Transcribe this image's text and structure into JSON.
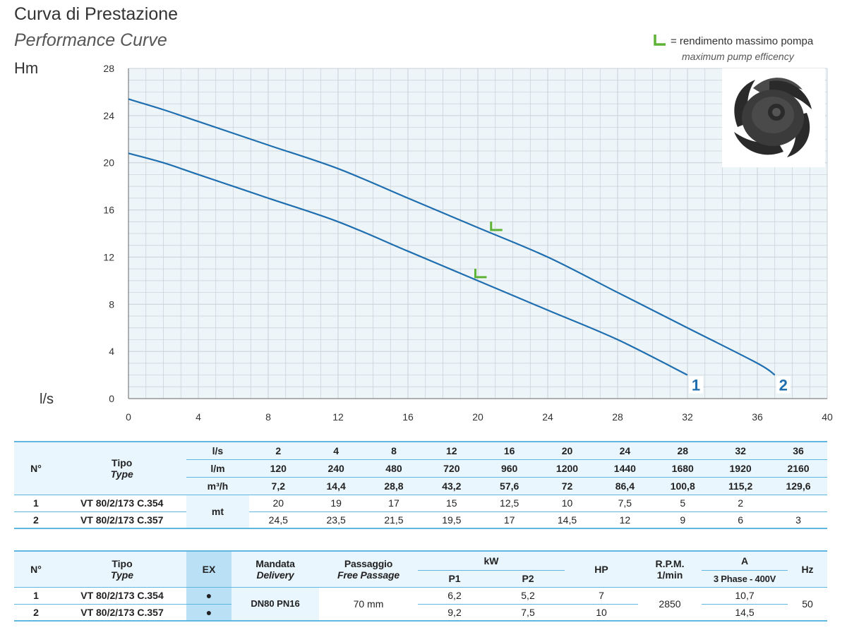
{
  "header": {
    "title": "Curva di Prestazione",
    "subtitle": "Performance Curve",
    "legend_text_it": "= rendimento massimo pompa",
    "legend_text_en": "maximum pump efficency"
  },
  "colors": {
    "curve": "#1f6fb0",
    "marker": "#5db336",
    "grid": "#c8d0d6",
    "plot_bg": "#eef5f9",
    "table_head": "#e9f6fd",
    "ex_col": "#b9e0f5"
  },
  "icons": {
    "legend_marker": "efficiency-marker-icon",
    "impeller": "impeller-image"
  },
  "chart_data": {
    "type": "line",
    "title": "Curva di Prestazione",
    "xlabel": "l/s",
    "ylabel": "Hm",
    "xlim": [
      0,
      40
    ],
    "ylim": [
      0,
      28
    ],
    "xticks": [
      0,
      4,
      8,
      12,
      16,
      20,
      24,
      28,
      32,
      36,
      40
    ],
    "yticks": [
      0,
      4,
      8,
      12,
      16,
      20,
      24,
      28
    ],
    "grid": true,
    "series": [
      {
        "name": "1",
        "x": [
          0,
          2,
          4,
          8,
          12,
          16,
          20,
          24,
          28,
          32
        ],
        "y": [
          20.8,
          20,
          19,
          17,
          15,
          12.5,
          10,
          7.5,
          5,
          2
        ],
        "bep": [
          20.1,
          10.3
        ]
      },
      {
        "name": "2",
        "x": [
          0,
          2,
          4,
          8,
          12,
          16,
          20,
          24,
          28,
          32,
          36,
          37
        ],
        "y": [
          25.4,
          24.5,
          23.5,
          21.5,
          19.5,
          17,
          14.5,
          12,
          9,
          6,
          3,
          2
        ],
        "bep": [
          21,
          14.3
        ]
      }
    ]
  },
  "table1": {
    "h_n": "N°",
    "h_tipo": "Tipo",
    "h_type": "Type",
    "unit_ls": "l/s",
    "unit_lm": "l/m",
    "unit_m3h": "m³/h",
    "unit_mt": "mt",
    "ls": [
      "2",
      "4",
      "8",
      "12",
      "16",
      "20",
      "24",
      "28",
      "32",
      "36"
    ],
    "lm": [
      "120",
      "240",
      "480",
      "720",
      "960",
      "1200",
      "1440",
      "1680",
      "1920",
      "2160"
    ],
    "m3h": [
      "7,2",
      "14,4",
      "28,8",
      "43,2",
      "57,6",
      "72",
      "86,4",
      "100,8",
      "115,2",
      "129,6"
    ],
    "rows": [
      {
        "n": "1",
        "model": "VT 80/2/173 C.354",
        "vals": [
          "20",
          "19",
          "17",
          "15",
          "12,5",
          "10",
          "7,5",
          "5",
          "2",
          ""
        ]
      },
      {
        "n": "2",
        "model": "VT 80/2/173 C.357",
        "vals": [
          "24,5",
          "23,5",
          "21,5",
          "19,5",
          "17",
          "14,5",
          "12",
          "9",
          "6",
          "3"
        ]
      }
    ]
  },
  "table2": {
    "h_n": "N°",
    "h_tipo": "Tipo",
    "h_type": "Type",
    "h_ex": "EX",
    "h_mandata": "Mandata",
    "h_delivery": "Delivery",
    "h_passaggio": "Passaggio",
    "h_free": "Free Passage",
    "h_kw": "kW",
    "h_p1": "P1",
    "h_p2": "P2",
    "h_hp": "HP",
    "h_rpm": "R.P.M.",
    "h_rpm2": "1/min",
    "h_a": "A",
    "h_phase": "3 Phase - 400V",
    "h_hz": "Hz",
    "delivery": "DN80 PN16",
    "passage": "70 mm",
    "rpm": "2850",
    "hz": "50",
    "rows": [
      {
        "n": "1",
        "model": "VT 80/2/173 C.354",
        "ex": "●",
        "p1": "6,2",
        "p2": "5,2",
        "hp": "7",
        "a": "10,7"
      },
      {
        "n": "2",
        "model": "VT 80/2/173 C.357",
        "ex": "●",
        "p1": "9,2",
        "p2": "7,5",
        "hp": "10",
        "a": "14,5"
      }
    ]
  }
}
